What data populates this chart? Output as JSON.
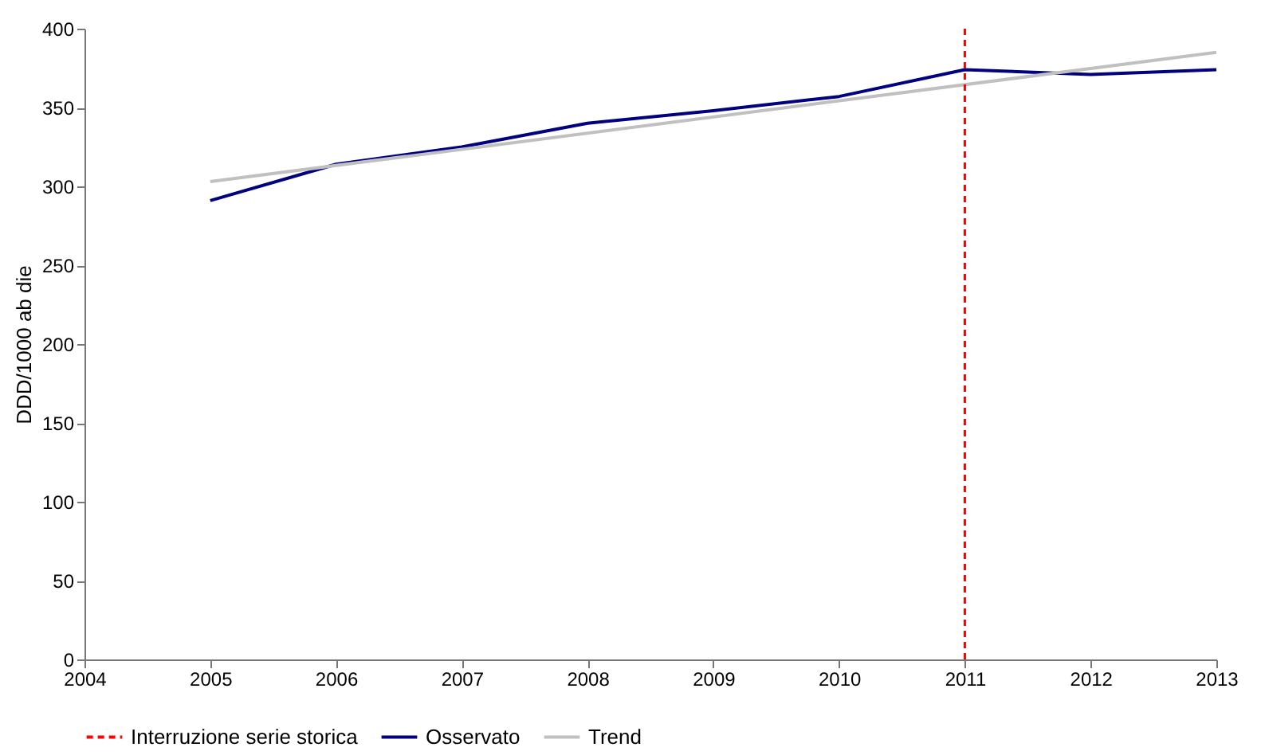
{
  "chart_data": {
    "type": "line",
    "ylabel": "DDD/1000 ab die",
    "x": [
      2005,
      2006,
      2007,
      2008,
      2009,
      2010,
      2011,
      2012,
      2013
    ],
    "series": [
      {
        "name": "Osservato",
        "color": "#000080",
        "line_style": "solid",
        "values": [
          291,
          314,
          325,
          340,
          348,
          357,
          374,
          371,
          374
        ]
      },
      {
        "name": "Trend",
        "color": "#c0c0c0",
        "type": "line",
        "line_style": "solid",
        "x": [
          2005,
          2013
        ],
        "values": [
          303,
          385
        ]
      }
    ],
    "ref_lines": [
      {
        "axis": "x",
        "value": 2011,
        "label": "Interruzione serie storica",
        "color": "#ff0000",
        "line_style": "dashed"
      }
    ],
    "xlim": [
      2004,
      2013
    ],
    "xticks": [
      2004,
      2005,
      2006,
      2007,
      2008,
      2009,
      2010,
      2011,
      2012,
      2013
    ],
    "ylim": [
      0,
      400
    ],
    "yticks": [
      0,
      50,
      100,
      150,
      200,
      250,
      300,
      350,
      400
    ],
    "legend": "bottom"
  }
}
